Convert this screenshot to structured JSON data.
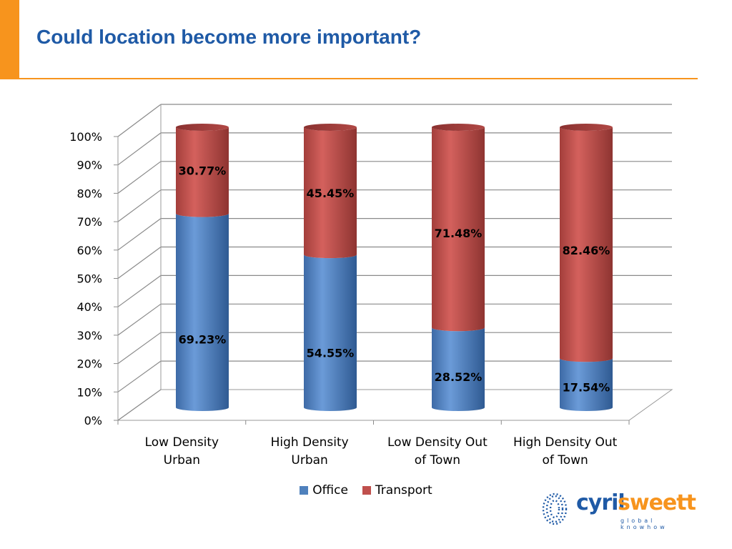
{
  "slide": {
    "title": "Could location become more important?"
  },
  "colors": {
    "accent": "#f7941d",
    "title": "#1f5aa6",
    "office": "#4f81bd",
    "transport": "#c0504d"
  },
  "logo": {
    "word1": "cyril",
    "word2": "sweett",
    "tagline": "global knowhow"
  },
  "chart_data": {
    "type": "bar",
    "stacked": true,
    "three_d": "cylinder",
    "title": "",
    "xlabel": "",
    "ylabel": "",
    "ylim": [
      0,
      100
    ],
    "y_ticks": [
      "0%",
      "10%",
      "20%",
      "30%",
      "40%",
      "50%",
      "60%",
      "70%",
      "80%",
      "90%",
      "100%"
    ],
    "grid": true,
    "legend_position": "bottom",
    "categories": [
      [
        "Low Density",
        "Urban"
      ],
      [
        "High Density",
        "Urban"
      ],
      [
        "Low Density Out",
        "of Town"
      ],
      [
        "High Density Out",
        "of Town"
      ]
    ],
    "series": [
      {
        "name": "Office",
        "color": "#4f81bd",
        "values": [
          69.23,
          54.55,
          28.52,
          17.54
        ],
        "labels": [
          "69.23%",
          "54.55%",
          "28.52%",
          "17.54%"
        ]
      },
      {
        "name": "Transport",
        "color": "#c0504d",
        "values": [
          30.77,
          45.45,
          71.48,
          82.46
        ],
        "labels": [
          "30.77%",
          "45.45%",
          "71.48%",
          "82.46%"
        ]
      }
    ]
  }
}
